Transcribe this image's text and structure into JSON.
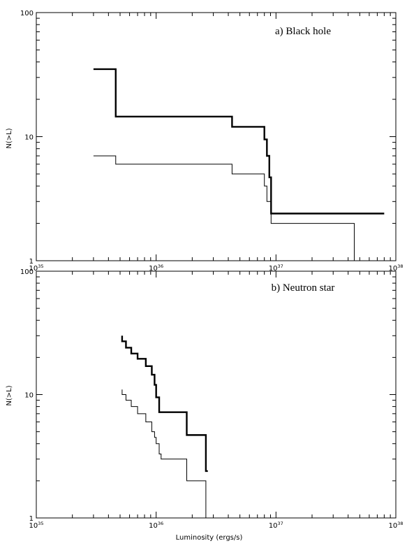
{
  "chart_data": [
    {
      "type": "line",
      "title": "a) Black hole",
      "xlabel": "",
      "ylabel": "N(>L)",
      "xscale": "log",
      "yscale": "log",
      "xlim": [
        "1e35",
        "1e38"
      ],
      "ylim": [
        1,
        100
      ],
      "x_tick_labels": [
        {
          "base": "10",
          "exp": "35"
        },
        {
          "base": "10",
          "exp": "36"
        },
        {
          "base": "10",
          "exp": "37"
        },
        {
          "base": "10",
          "exp": "38"
        }
      ],
      "y_tick_labels": [
        "1",
        "10",
        "100"
      ],
      "series": [
        {
          "style": "thick",
          "x": [
            "3e35",
            "4.6e35",
            "4.6e35",
            "4.3e36",
            "4.3e36",
            "8e36",
            "8e36",
            "8.4e36",
            "8.4e36",
            "8.8e36",
            "8.8e36",
            "9.1e36",
            "9.1e36",
            "4.5e37",
            "4.5e37",
            "8e37"
          ],
          "y": [
            35,
            35,
            14.5,
            14.5,
            12,
            12,
            9.5,
            9.5,
            7,
            7,
            4.7,
            4.7,
            2.4,
            2.4,
            2.4,
            2.4
          ]
        },
        {
          "style": "thin",
          "x": [
            "3e35",
            "4.6e35",
            "4.6e35",
            "4.3e36",
            "4.3e36",
            "8e36",
            "8e36",
            "8.4e36",
            "8.4e36",
            "9.1e36",
            "9.1e36",
            "4.5e37",
            "4.5e37"
          ],
          "y": [
            7,
            7,
            6,
            6,
            5,
            5,
            4,
            4,
            3,
            3,
            2,
            2,
            1
          ]
        }
      ]
    },
    {
      "type": "line",
      "title": "b) Neutron star",
      "xlabel": "Luminosity (ergs/s)",
      "ylabel": "N(>L)",
      "xscale": "log",
      "yscale": "log",
      "xlim": [
        "1e35",
        "1e38"
      ],
      "ylim": [
        1,
        100
      ],
      "x_tick_labels": [
        {
          "base": "10",
          "exp": "35"
        },
        {
          "base": "10",
          "exp": "36"
        },
        {
          "base": "10",
          "exp": "37"
        },
        {
          "base": "10",
          "exp": "38"
        }
      ],
      "y_tick_labels": [
        "1",
        "10",
        "100"
      ],
      "series": [
        {
          "style": "thick",
          "x": [
            "5.2e35",
            "5.2e35",
            "5.6e35",
            "5.6e35",
            "6.2e35",
            "6.2e35",
            "7e35",
            "7e35",
            "8.2e35",
            "8.2e35",
            "9.2e35",
            "9.2e35",
            "9.7e35",
            "9.7e35",
            "1.0e36",
            "1.0e36",
            "1.06e36",
            "1.06e36",
            "1.1e36",
            "1.1e36",
            "1.8e36",
            "1.8e36",
            "2.6e36",
            "2.6e36",
            "2.7e36"
          ],
          "y": [
            30,
            27,
            27,
            24,
            24,
            21.5,
            21.5,
            19.5,
            19.5,
            17,
            17,
            14.5,
            14.5,
            12,
            12,
            9.5,
            9.5,
            7.2,
            7.2,
            7.2,
            7.2,
            4.7,
            4.7,
            2.4,
            2.4
          ]
        },
        {
          "style": "thin",
          "x": [
            "5.2e35",
            "5.2e35",
            "5.6e35",
            "5.6e35",
            "6.2e35",
            "6.2e35",
            "7e35",
            "7e35",
            "8.2e35",
            "8.2e35",
            "9.2e35",
            "9.2e35",
            "9.7e35",
            "9.7e35",
            "1.0e36",
            "1.0e36",
            "1.06e36",
            "1.06e36",
            "1.1e36",
            "1.1e36",
            "1.8e36",
            "1.8e36",
            "2.6e36",
            "2.6e36"
          ],
          "y": [
            11,
            10,
            10,
            9,
            9,
            8,
            8,
            7,
            7,
            6,
            6,
            5,
            5,
            4.5,
            4.5,
            4,
            4,
            3.3,
            3.3,
            3,
            3,
            2,
            2,
            1
          ]
        }
      ]
    }
  ]
}
